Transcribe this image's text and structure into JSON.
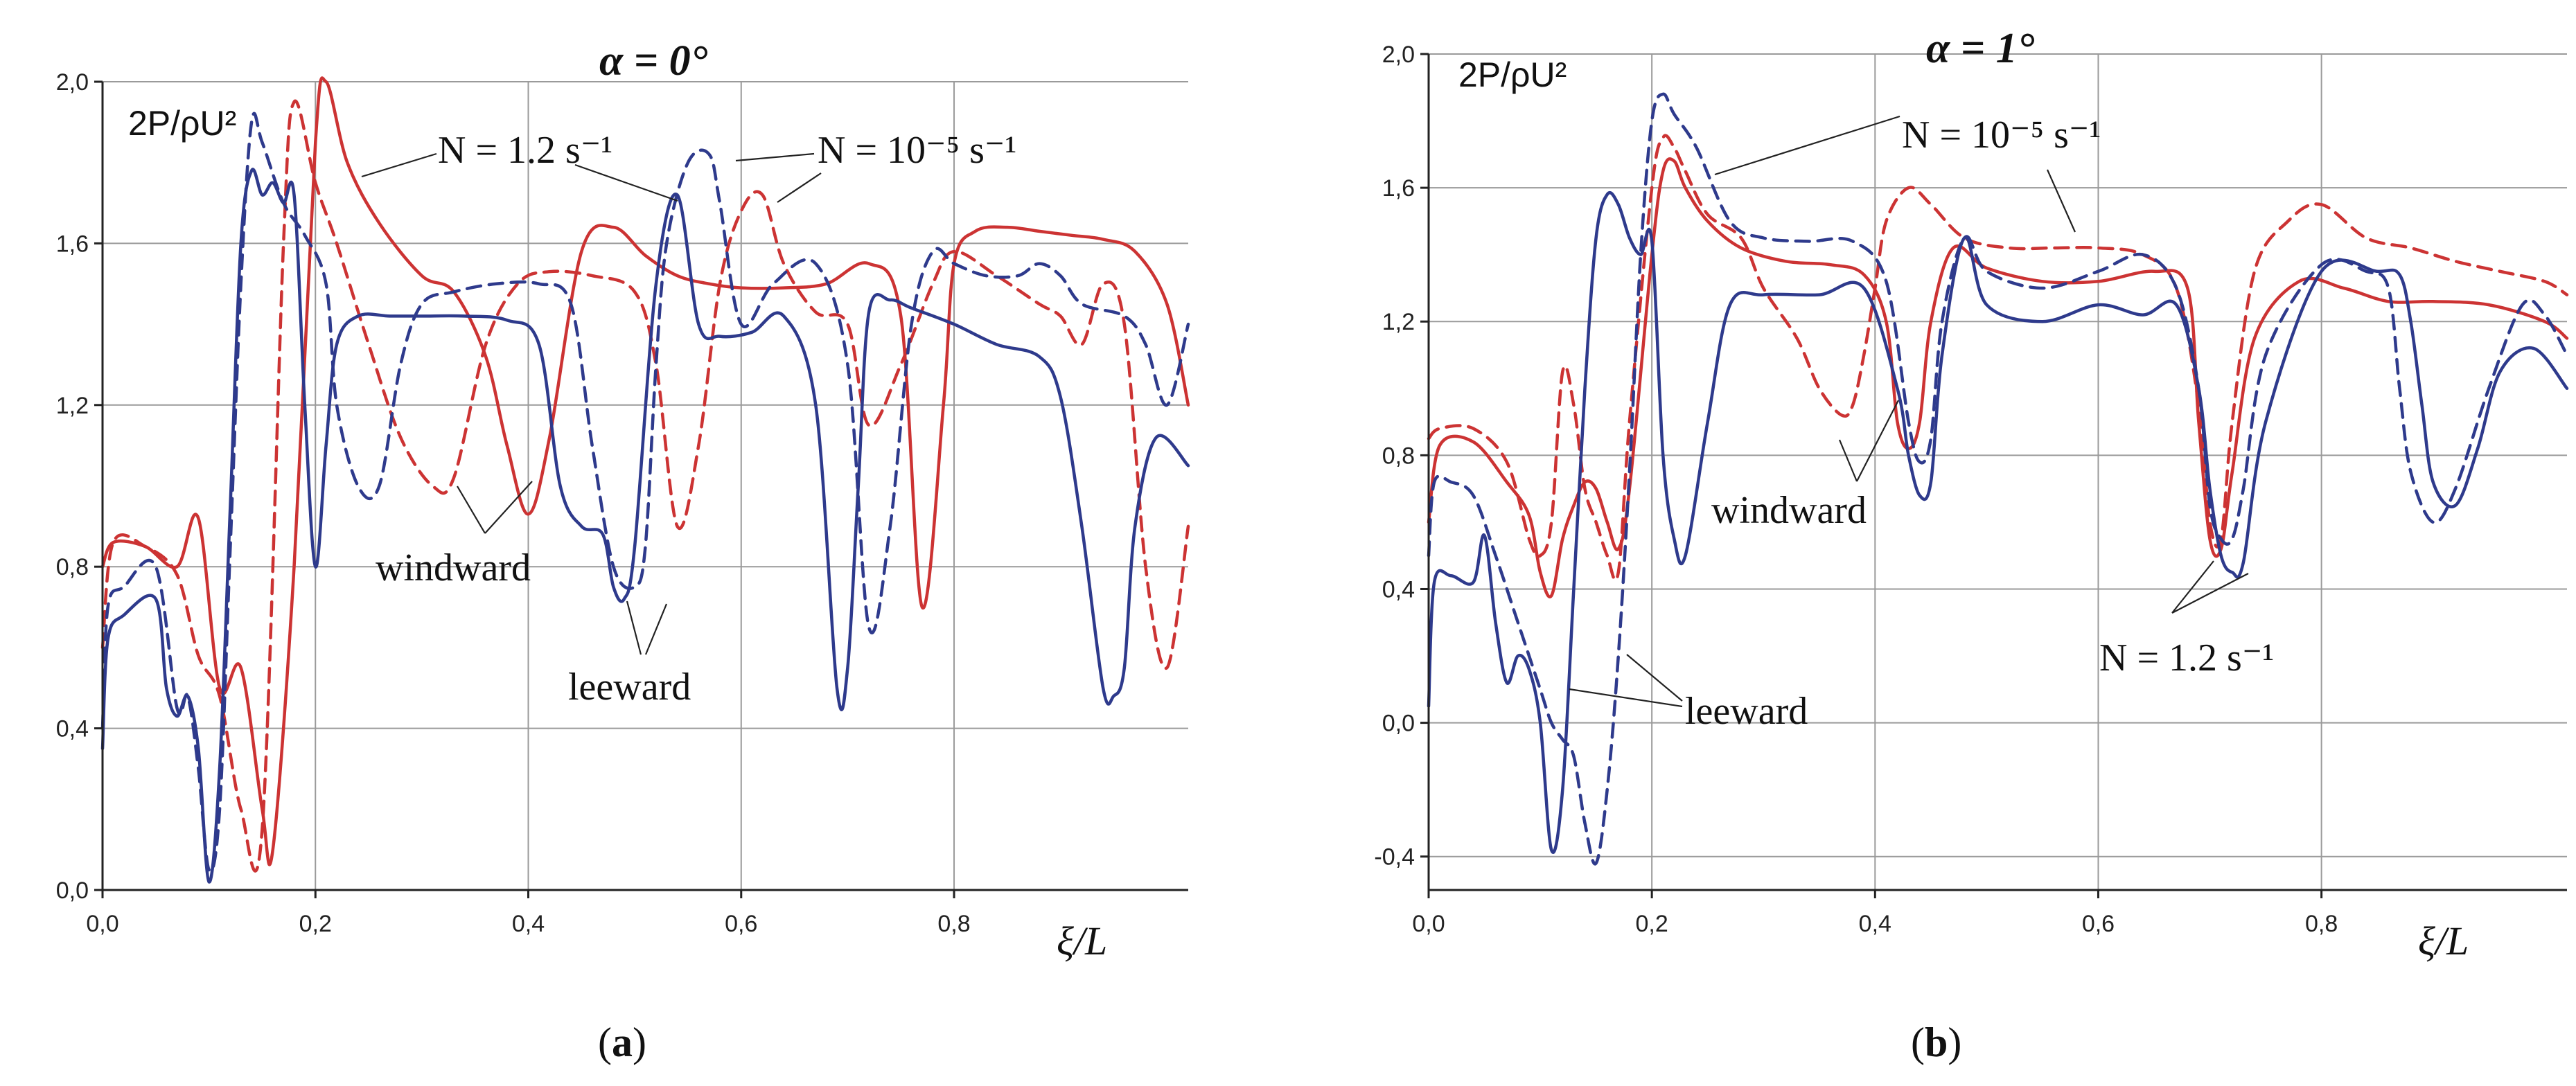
{
  "chart_data": [
    {
      "type": "line",
      "panel_label": "a",
      "title": "α = 0°",
      "xlabel": "ξ/L",
      "ylabel": "2P/ρU²",
      "xlim": [
        0,
        1.02
      ],
      "ylim": [
        0,
        2.0
      ],
      "xticks": [
        "0,0",
        "0,2",
        "0,4",
        "0,6",
        "0,8"
      ],
      "yticks": [
        "0,0",
        "0,4",
        "0,8",
        "1,2",
        "1,6",
        "2,0"
      ],
      "grid": true,
      "annotations": [
        "N = 1.2 s⁻¹",
        "N = 10⁻⁵ s⁻¹",
        "windward",
        "leeward"
      ],
      "series": [
        {
          "name": "N = 1.2 s⁻¹ windward",
          "color": "#cc3333",
          "dash": "solid",
          "x": [
            0,
            0.01,
            0.04,
            0.07,
            0.09,
            0.11,
            0.13,
            0.15,
            0.16,
            0.18,
            0.2,
            0.21,
            0.23,
            0.26,
            0.3,
            0.33,
            0.36,
            0.38,
            0.4,
            0.42,
            0.45,
            0.48,
            0.51,
            0.54,
            0.57,
            0.6,
            0.64,
            0.68,
            0.72,
            0.75,
            0.77,
            0.79,
            0.8,
            0.82,
            0.85,
            0.88,
            0.91,
            0.94,
            0.97,
            1.0,
            1.02
          ],
          "y": [
            0.8,
            0.86,
            0.85,
            0.8,
            0.92,
            0.5,
            0.55,
            0.2,
            0.1,
            0.8,
            1.85,
            2.0,
            1.8,
            1.65,
            1.52,
            1.48,
            1.32,
            1.1,
            0.93,
            1.12,
            1.58,
            1.64,
            1.57,
            1.52,
            1.5,
            1.49,
            1.49,
            1.5,
            1.55,
            1.42,
            0.7,
            1.2,
            1.55,
            1.63,
            1.64,
            1.63,
            1.62,
            1.61,
            1.58,
            1.45,
            1.2
          ]
        },
        {
          "name": "N = 10⁻⁵ s⁻¹ windward",
          "color": "#cc3333",
          "dash": "dashed",
          "x": [
            0,
            0.01,
            0.04,
            0.07,
            0.09,
            0.11,
            0.13,
            0.15,
            0.17,
            0.18,
            0.2,
            0.22,
            0.25,
            0.28,
            0.31,
            0.33,
            0.36,
            0.39,
            0.42,
            0.46,
            0.5,
            0.52,
            0.54,
            0.56,
            0.58,
            0.6,
            0.62,
            0.64,
            0.67,
            0.7,
            0.72,
            0.75,
            0.78,
            0.8,
            0.84,
            0.88,
            0.9,
            0.92,
            0.94,
            0.96,
            0.98,
            1.0,
            1.02
          ],
          "y": [
            0.6,
            0.86,
            0.85,
            0.78,
            0.58,
            0.48,
            0.2,
            0.15,
            1.6,
            1.95,
            1.75,
            1.6,
            1.35,
            1.12,
            1.0,
            1.02,
            1.35,
            1.5,
            1.53,
            1.52,
            1.48,
            1.3,
            0.9,
            1.1,
            1.5,
            1.68,
            1.72,
            1.55,
            1.43,
            1.4,
            1.15,
            1.3,
            1.5,
            1.58,
            1.52,
            1.45,
            1.42,
            1.35,
            1.5,
            1.4,
            0.8,
            0.55,
            0.9
          ]
        },
        {
          "name": "N = 1.2 s⁻¹ leeward",
          "color": "#2e3a8c",
          "dash": "solid",
          "x": [
            0,
            0.005,
            0.02,
            0.05,
            0.06,
            0.07,
            0.08,
            0.09,
            0.1,
            0.11,
            0.12,
            0.13,
            0.14,
            0.15,
            0.16,
            0.17,
            0.18,
            0.19,
            0.2,
            0.21,
            0.22,
            0.24,
            0.27,
            0.3,
            0.34,
            0.38,
            0.41,
            0.43,
            0.45,
            0.47,
            0.48,
            0.49,
            0.5,
            0.52,
            0.54,
            0.56,
            0.58,
            0.61,
            0.64,
            0.67,
            0.69,
            0.7,
            0.71,
            0.72,
            0.74,
            0.76,
            0.8,
            0.84,
            0.88,
            0.9,
            0.92,
            0.94,
            0.95,
            0.96,
            0.97,
            0.99,
            1.02
          ],
          "y": [
            0.35,
            0.62,
            0.68,
            0.72,
            0.5,
            0.43,
            0.48,
            0.35,
            0.02,
            0.3,
            0.95,
            1.6,
            1.78,
            1.72,
            1.75,
            1.7,
            1.72,
            1.2,
            0.8,
            1.1,
            1.35,
            1.42,
            1.42,
            1.42,
            1.42,
            1.41,
            1.35,
            1.0,
            0.9,
            0.88,
            0.75,
            0.72,
            0.85,
            1.5,
            1.72,
            1.4,
            1.37,
            1.38,
            1.42,
            1.2,
            0.5,
            0.55,
            1.0,
            1.43,
            1.46,
            1.44,
            1.4,
            1.35,
            1.32,
            1.22,
            0.9,
            0.5,
            0.48,
            0.55,
            0.9,
            1.12,
            1.05
          ]
        },
        {
          "name": "N = 10⁻⁵ s⁻¹ leeward",
          "color": "#2e3a8c",
          "dash": "dashed",
          "x": [
            0,
            0.005,
            0.02,
            0.05,
            0.07,
            0.08,
            0.09,
            0.1,
            0.11,
            0.12,
            0.13,
            0.14,
            0.15,
            0.17,
            0.19,
            0.21,
            0.22,
            0.24,
            0.26,
            0.28,
            0.3,
            0.33,
            0.37,
            0.41,
            0.44,
            0.46,
            0.48,
            0.5,
            0.51,
            0.52,
            0.53,
            0.55,
            0.57,
            0.58,
            0.6,
            0.63,
            0.67,
            0.7,
            0.72,
            0.74,
            0.76,
            0.78,
            0.8,
            0.83,
            0.86,
            0.88,
            0.9,
            0.92,
            0.96,
            0.98,
            1.0,
            1.02
          ],
          "y": [
            0.4,
            0.7,
            0.75,
            0.8,
            0.45,
            0.48,
            0.3,
            0.05,
            0.2,
            0.85,
            1.5,
            1.9,
            1.85,
            1.7,
            1.62,
            1.5,
            1.2,
            1.0,
            1.0,
            1.3,
            1.45,
            1.48,
            1.5,
            1.5,
            1.45,
            1.1,
            0.8,
            0.75,
            0.85,
            1.3,
            1.6,
            1.8,
            1.82,
            1.7,
            1.4,
            1.5,
            1.55,
            1.3,
            0.65,
            0.9,
            1.4,
            1.58,
            1.55,
            1.52,
            1.52,
            1.55,
            1.52,
            1.45,
            1.42,
            1.35,
            1.2,
            1.4
          ]
        }
      ]
    },
    {
      "type": "line",
      "panel_label": "b",
      "title": "α = 1°",
      "xlabel": "ξ/L",
      "ylabel": "2P/ρU²",
      "xlim": [
        0,
        1.02
      ],
      "ylim": [
        -0.5,
        2.0
      ],
      "xticks": [
        "0,0",
        "0,2",
        "0,4",
        "0,6",
        "0,8"
      ],
      "yticks": [
        "-0,4",
        "0,0",
        "0,4",
        "0,8",
        "1,2",
        "1,6",
        "2,0"
      ],
      "grid": true,
      "annotations": [
        "N = 10⁻⁵ s⁻¹",
        "windward",
        "N = 1.2 s⁻¹",
        "leeward"
      ],
      "series": [
        {
          "name": "N = 1.2 s⁻¹ windward",
          "color": "#cc3333",
          "dash": "solid",
          "x": [
            0,
            0.01,
            0.04,
            0.07,
            0.09,
            0.1,
            0.11,
            0.12,
            0.13,
            0.14,
            0.15,
            0.16,
            0.17,
            0.18,
            0.2,
            0.21,
            0.22,
            0.23,
            0.25,
            0.28,
            0.32,
            0.36,
            0.39,
            0.41,
            0.42,
            0.43,
            0.44,
            0.45,
            0.47,
            0.5,
            0.55,
            0.6,
            0.65,
            0.68,
            0.69,
            0.7,
            0.71,
            0.72,
            0.74,
            0.78,
            0.82,
            0.86,
            0.9,
            0.95,
            1.0,
            1.02
          ],
          "y": [
            0.6,
            0.83,
            0.84,
            0.72,
            0.62,
            0.45,
            0.38,
            0.55,
            0.65,
            0.72,
            0.7,
            0.6,
            0.52,
            0.7,
            1.4,
            1.65,
            1.68,
            1.6,
            1.5,
            1.42,
            1.38,
            1.37,
            1.34,
            1.2,
            0.9,
            0.82,
            0.9,
            1.2,
            1.42,
            1.36,
            1.32,
            1.32,
            1.35,
            1.3,
            0.9,
            0.55,
            0.52,
            0.75,
            1.15,
            1.32,
            1.3,
            1.26,
            1.26,
            1.25,
            1.2,
            1.15
          ]
        },
        {
          "name": "N = 10⁻⁵ s⁻¹ windward",
          "color": "#cc3333",
          "dash": "dashed",
          "x": [
            0,
            0.01,
            0.04,
            0.07,
            0.09,
            0.1,
            0.11,
            0.12,
            0.13,
            0.14,
            0.15,
            0.16,
            0.17,
            0.18,
            0.2,
            0.21,
            0.22,
            0.23,
            0.25,
            0.28,
            0.3,
            0.33,
            0.35,
            0.37,
            0.38,
            0.39,
            0.4,
            0.41,
            0.43,
            0.45,
            0.48,
            0.52,
            0.56,
            0.6,
            0.64,
            0.67,
            0.69,
            0.7,
            0.71,
            0.72,
            0.74,
            0.77,
            0.8,
            0.84,
            0.88,
            0.92,
            0.96,
            1.0,
            1.02
          ],
          "y": [
            0.85,
            0.88,
            0.88,
            0.78,
            0.55,
            0.5,
            0.6,
            1.05,
            0.95,
            0.7,
            0.6,
            0.5,
            0.45,
            0.9,
            1.6,
            1.75,
            1.72,
            1.65,
            1.52,
            1.45,
            1.3,
            1.15,
            1.0,
            0.92,
            0.95,
            1.1,
            1.3,
            1.5,
            1.6,
            1.55,
            1.45,
            1.42,
            1.42,
            1.42,
            1.4,
            1.3,
            0.95,
            0.6,
            0.55,
            0.9,
            1.35,
            1.5,
            1.55,
            1.45,
            1.42,
            1.38,
            1.35,
            1.32,
            1.28
          ]
        },
        {
          "name": "N = 1.2 s⁻¹ leeward",
          "color": "#2e3a8c",
          "dash": "solid",
          "x": [
            0,
            0.005,
            0.02,
            0.04,
            0.05,
            0.06,
            0.07,
            0.08,
            0.09,
            0.1,
            0.11,
            0.12,
            0.13,
            0.14,
            0.15,
            0.16,
            0.17,
            0.18,
            0.19,
            0.2,
            0.21,
            0.22,
            0.23,
            0.25,
            0.27,
            0.3,
            0.35,
            0.39,
            0.42,
            0.43,
            0.44,
            0.45,
            0.46,
            0.48,
            0.5,
            0.55,
            0.6,
            0.64,
            0.67,
            0.69,
            0.7,
            0.71,
            0.72,
            0.73,
            0.75,
            0.8,
            0.85,
            0.87,
            0.88,
            0.89,
            0.9,
            0.92,
            0.94,
            0.96,
            0.99,
            1.02
          ],
          "y": [
            0.05,
            0.42,
            0.44,
            0.42,
            0.56,
            0.3,
            0.12,
            0.2,
            0.16,
            0.0,
            -0.38,
            -0.2,
            0.4,
            1.0,
            1.45,
            1.58,
            1.55,
            1.45,
            1.4,
            1.44,
            0.8,
            0.55,
            0.5,
            0.9,
            1.25,
            1.28,
            1.28,
            1.3,
            1.0,
            0.8,
            0.68,
            0.72,
            1.1,
            1.45,
            1.25,
            1.2,
            1.25,
            1.22,
            1.25,
            1.0,
            0.7,
            0.5,
            0.45,
            0.48,
            0.9,
            1.35,
            1.35,
            1.34,
            1.2,
            0.95,
            0.72,
            0.65,
            0.82,
            1.05,
            1.12,
            1.0
          ]
        },
        {
          "name": "N = 10⁻⁵ s⁻¹ leeward",
          "color": "#2e3a8c",
          "dash": "dashed",
          "x": [
            0,
            0.005,
            0.02,
            0.04,
            0.06,
            0.08,
            0.1,
            0.11,
            0.12,
            0.13,
            0.14,
            0.15,
            0.16,
            0.17,
            0.18,
            0.19,
            0.2,
            0.21,
            0.22,
            0.24,
            0.27,
            0.3,
            0.34,
            0.38,
            0.41,
            0.43,
            0.44,
            0.45,
            0.46,
            0.48,
            0.5,
            0.55,
            0.6,
            0.64,
            0.67,
            0.69,
            0.7,
            0.71,
            0.72,
            0.73,
            0.75,
            0.8,
            0.84,
            0.86,
            0.87,
            0.88,
            0.9,
            0.92,
            0.95,
            0.98,
            1.0,
            1.02
          ],
          "y": [
            0.5,
            0.72,
            0.72,
            0.68,
            0.5,
            0.3,
            0.1,
            0.0,
            -0.05,
            -0.1,
            -0.3,
            -0.42,
            -0.2,
            0.2,
            0.75,
            1.4,
            1.8,
            1.88,
            1.82,
            1.72,
            1.5,
            1.45,
            1.44,
            1.44,
            1.32,
            0.9,
            0.78,
            0.85,
            1.2,
            1.45,
            1.35,
            1.3,
            1.35,
            1.4,
            1.3,
            1.0,
            0.65,
            0.55,
            0.55,
            0.7,
            1.1,
            1.37,
            1.35,
            1.3,
            1.0,
            0.75,
            0.6,
            0.7,
            1.0,
            1.25,
            1.22,
            1.1
          ]
        }
      ]
    }
  ]
}
